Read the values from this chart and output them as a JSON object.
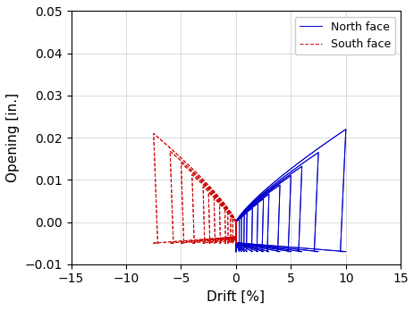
{
  "xlabel": "Drift [%]",
  "ylabel": "Opening [in.]",
  "xlim": [
    -15,
    15
  ],
  "ylim": [
    -0.01,
    0.05
  ],
  "xticks": [
    -15,
    -10,
    -5,
    0,
    5,
    10,
    15
  ],
  "yticks": [
    -0.01,
    0,
    0.01,
    0.02,
    0.03,
    0.04,
    0.05
  ],
  "north_color": "#0000CC",
  "south_color": "#CC0000",
  "north_label": "North face",
  "south_label": "South face",
  "figsize": [
    4.64,
    3.47
  ],
  "dpi": 100
}
